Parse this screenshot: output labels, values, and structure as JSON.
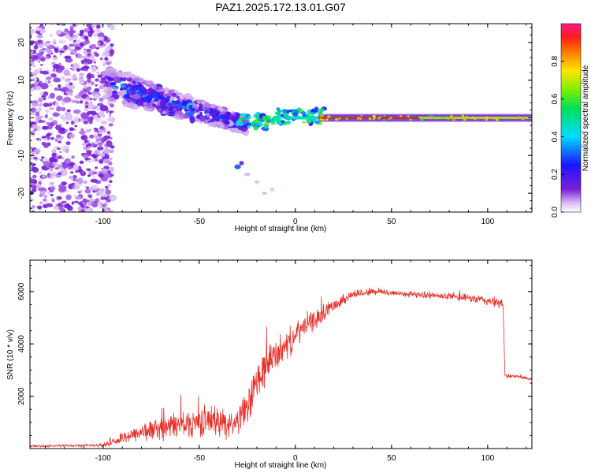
{
  "title": "PAZ1.2025.172.13.01.G07",
  "colors": {
    "snr_line": "#e8302a",
    "bg": "#ffffff",
    "axis": "#000000"
  },
  "chart_data": [
    {
      "type": "heatmap",
      "xlabel": "Height of straight line (km)",
      "ylabel": "Frequency (Hz)",
      "xlim": [
        -138,
        123
      ],
      "ylim": [
        -25,
        25
      ],
      "xticks": [
        -100,
        -50,
        0,
        50,
        100
      ],
      "xtick_labels": [
        "-100",
        "-50",
        "0",
        "50",
        "100"
      ],
      "yticks": [
        -20,
        -10,
        0,
        10,
        20
      ],
      "ytick_labels": [
        "-20",
        "-10",
        "0",
        "10",
        "20"
      ],
      "colormap": "rainbow",
      "colorbar": {
        "label": "Normalized spectral amplitude",
        "range": [
          0,
          1
        ],
        "ticks": [
          0.0,
          0.2,
          0.4,
          0.6,
          0.8
        ],
        "tick_labels": [
          "0.0",
          "0.2",
          "0.4",
          "0.6",
          "0.8"
        ]
      },
      "features": [
        {
          "name": "noise",
          "x_range": [
            -138,
            -95
          ],
          "freq_range": [
            -25,
            25
          ],
          "amplitude": 0.08
        },
        {
          "name": "diagonal",
          "x_range": [
            -97,
            -25
          ],
          "freq_start": 9,
          "freq_end": -2,
          "amplitude": 0.25
        },
        {
          "name": "carrier",
          "x_range": [
            -30,
            123
          ],
          "freq": 0,
          "amplitude": 0.95
        }
      ]
    },
    {
      "type": "line",
      "xlabel": "Height of straight line (km)",
      "ylabel": "SNR (10 * v/v)",
      "xlim": [
        -138,
        123
      ],
      "ylim": [
        0,
        7200
      ],
      "xticks": [
        -100,
        -50,
        0,
        50,
        100
      ],
      "xtick_labels": [
        "-100",
        "-50",
        "0",
        "50",
        "100"
      ],
      "yticks": [
        2000,
        4000,
        6000
      ],
      "ytick_labels": [
        "2000",
        "4000",
        "6000"
      ],
      "series": [
        {
          "color": "#e8302a",
          "x": [
            -138,
            -120,
            -100,
            -92,
            -85,
            -75,
            -65,
            -55,
            -45,
            -38,
            -32,
            -25,
            -20,
            -15,
            -10,
            -5,
            0,
            5,
            10,
            20,
            30,
            40,
            50,
            60,
            70,
            80,
            90,
            95,
            100,
            108,
            109,
            115,
            123
          ],
          "y": [
            90,
            110,
            130,
            300,
            550,
            700,
            850,
            950,
            1100,
            1000,
            950,
            1500,
            2500,
            3200,
            3600,
            3900,
            4300,
            4700,
            4900,
            5500,
            5900,
            6000,
            5950,
            5900,
            5850,
            5800,
            5750,
            5700,
            5650,
            5500,
            2800,
            2750,
            2650
          ],
          "noise": [
            40,
            40,
            60,
            150,
            300,
            400,
            500,
            550,
            600,
            600,
            500,
            700,
            900,
            700,
            650,
            550,
            500,
            450,
            400,
            250,
            180,
            150,
            120,
            120,
            120,
            130,
            150,
            180,
            200,
            200,
            80,
            60,
            60
          ]
        }
      ]
    }
  ]
}
